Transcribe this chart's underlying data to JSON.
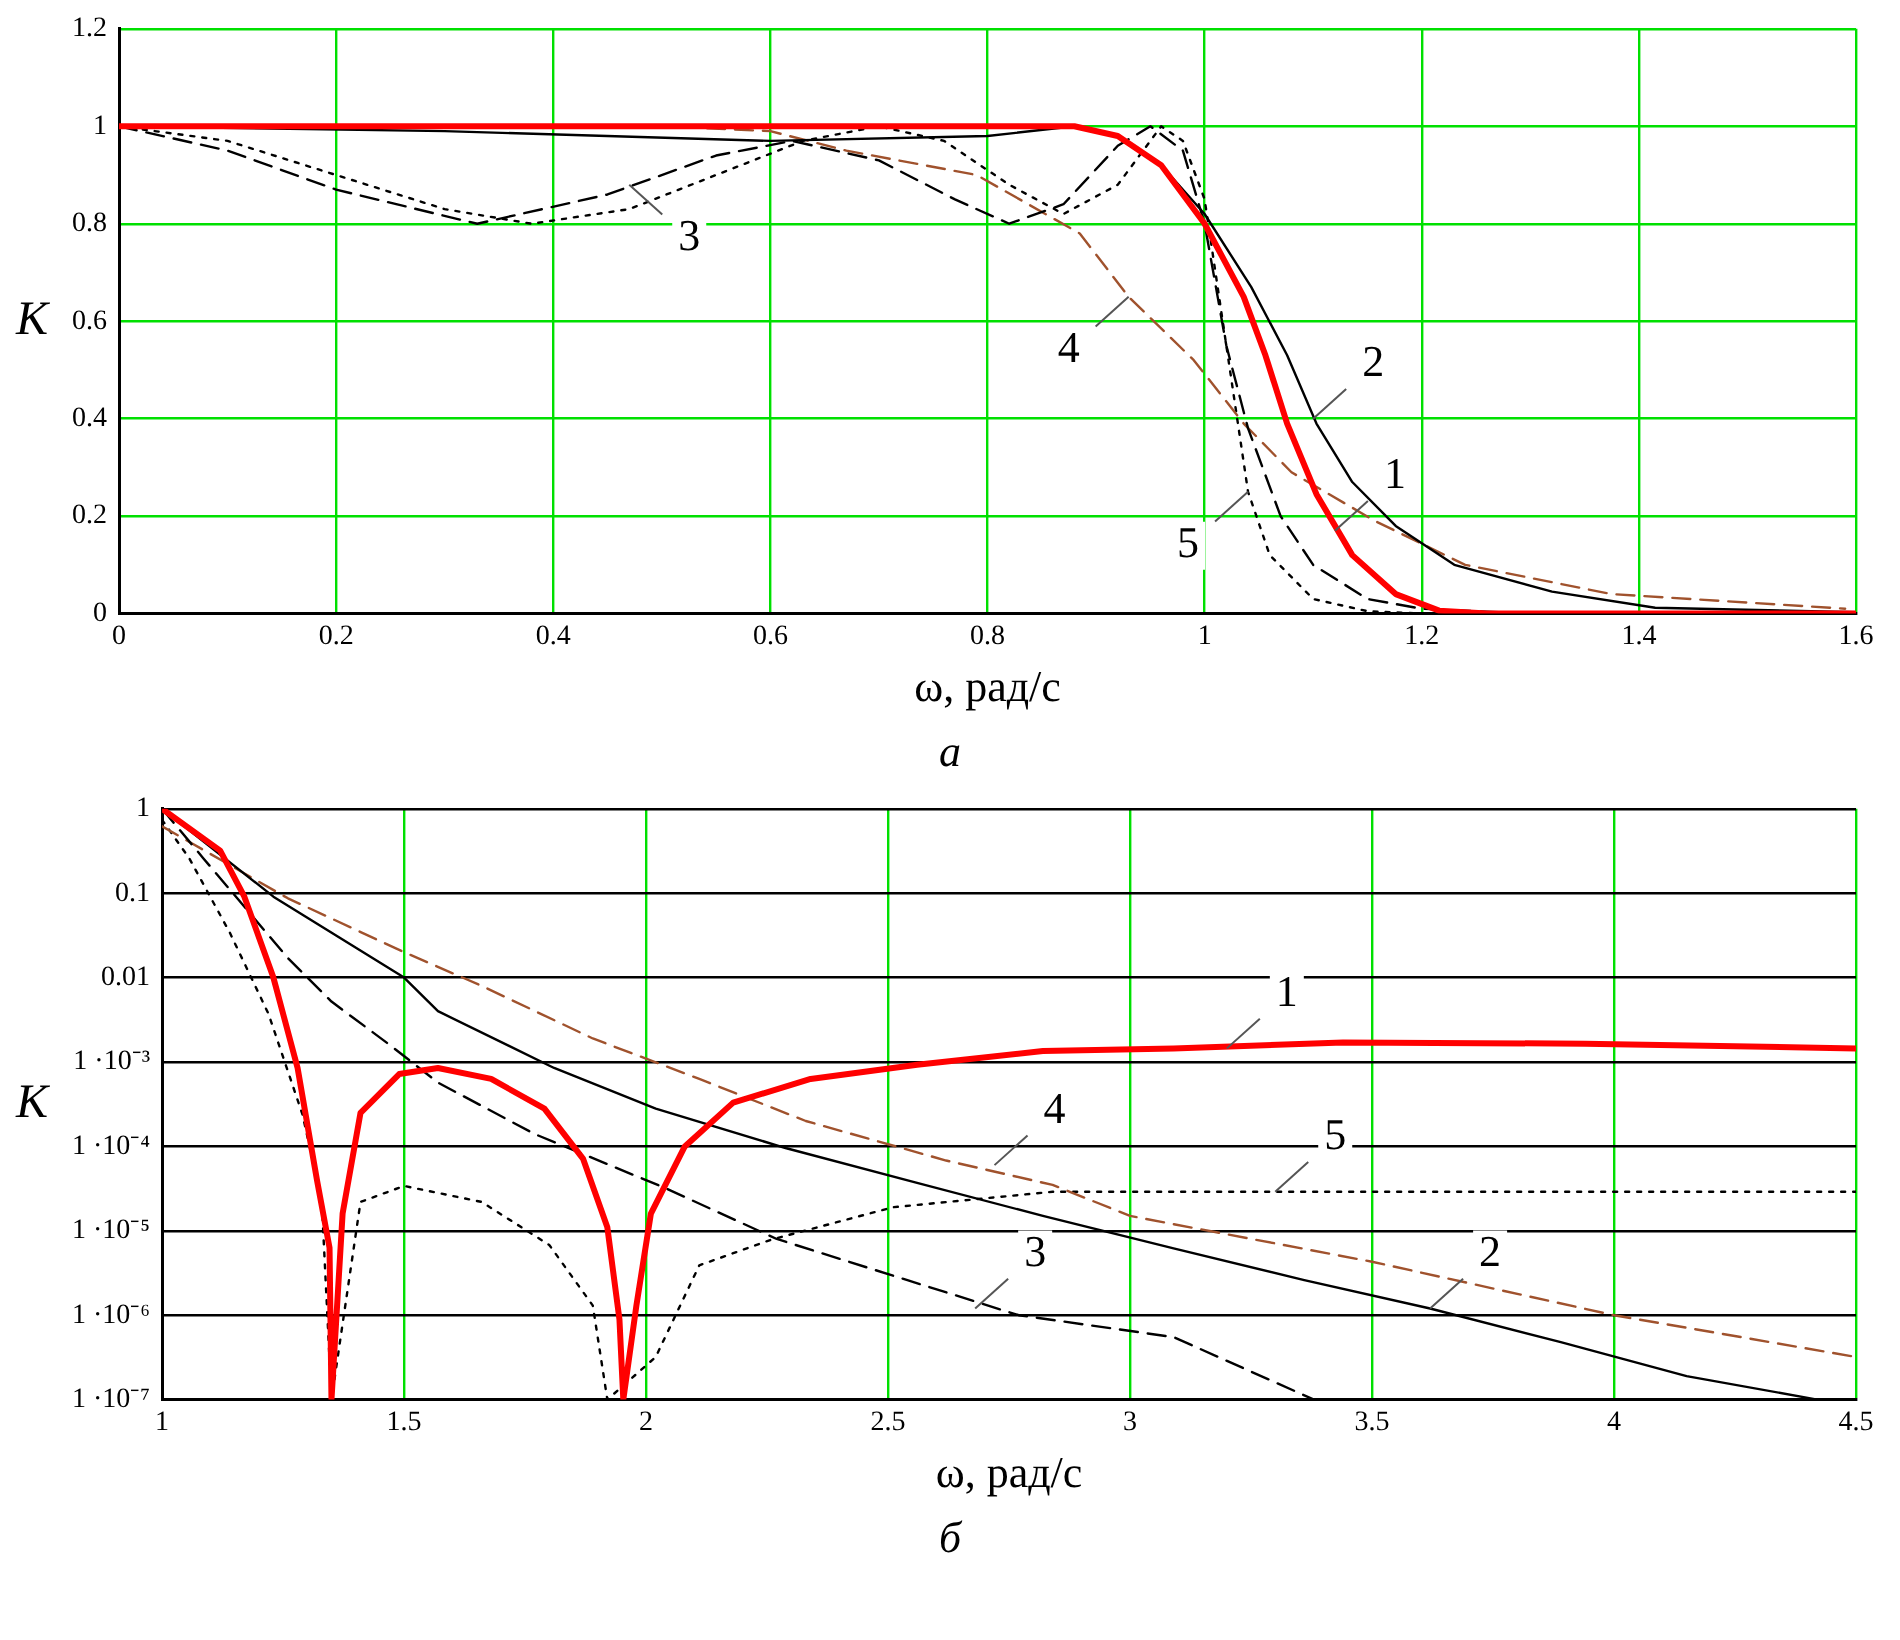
{
  "chart_data": [
    {
      "type": "line",
      "xlabel": "ω, рад/с",
      "ylabel": "K",
      "xlim": [
        0,
        1.6
      ],
      "xticks": [
        0,
        0.2,
        0.4,
        0.6,
        0.8,
        1,
        1.2,
        1.4,
        1.6
      ],
      "ylim": [
        0,
        1.2
      ],
      "yticks": [
        0,
        0.2,
        0.4,
        0.6,
        0.8,
        1,
        1.2
      ],
      "grid": true,
      "legend": false,
      "marker": "none",
      "series": [
        {
          "color": "#ff0000",
          "line_style": "solid",
          "x": [
            0,
            0.5,
            0.88,
            0.92,
            0.96,
            1.0,
            1.036,
            1.056,
            1.076,
            1.103,
            1.136,
            1.176,
            1.216,
            1.26,
            1.4,
            1.6
          ],
          "values": [
            1,
            1,
            1,
            0.98,
            0.92,
            0.8,
            0.65,
            0.53,
            0.39,
            0.245,
            0.12,
            0.04,
            0.006,
            0,
            0,
            0
          ]
        },
        {
          "color": "#000000",
          "line_style": "solid",
          "x": [
            0,
            0.3,
            0.6,
            0.8,
            0.88,
            0.92,
            0.96,
            1.0,
            1.043,
            1.076,
            1.103,
            1.136,
            1.176,
            1.23,
            1.32,
            1.415,
            1.6
          ],
          "values": [
            1,
            0.99,
            0.97,
            0.98,
            1,
            0.98,
            0.92,
            0.82,
            0.67,
            0.53,
            0.39,
            0.27,
            0.18,
            0.1,
            0.045,
            0.012,
            0.003
          ]
        },
        {
          "color": "#000000",
          "line_style": "dashed",
          "x": [
            0,
            0.1,
            0.2,
            0.33,
            0.45,
            0.55,
            0.62,
            0.7,
            0.77,
            0.82,
            0.87,
            0.92,
            0.95,
            0.98,
            1.0,
            1.02,
            1.04,
            1.07,
            1.1,
            1.15,
            1.2,
            1.3,
            1.6
          ],
          "values": [
            1,
            0.95,
            0.87,
            0.8,
            0.86,
            0.94,
            0.97,
            0.93,
            0.85,
            0.8,
            0.84,
            0.96,
            1,
            0.95,
            0.8,
            0.55,
            0.38,
            0.2,
            0.1,
            0.03,
            0.01,
            0,
            0
          ]
        },
        {
          "color": "#a0522d",
          "line_style": "dashed",
          "x": [
            0,
            0.5,
            0.6,
            0.67,
            0.79,
            0.885,
            0.93,
            0.99,
            1.036,
            1.08,
            1.157,
            1.24,
            1.375,
            1.59
          ],
          "values": [
            1,
            1,
            0.99,
            0.95,
            0.9,
            0.78,
            0.65,
            0.52,
            0.39,
            0.29,
            0.19,
            0.1,
            0.04,
            0.01
          ]
        },
        {
          "color": "#000000",
          "line_style": "dotted",
          "x": [
            0,
            0.1,
            0.2,
            0.3,
            0.38,
            0.47,
            0.55,
            0.63,
            0.7,
            0.76,
            0.82,
            0.87,
            0.92,
            0.96,
            0.98,
            1.0,
            1.02,
            1.04,
            1.06,
            1.1,
            1.15,
            1.2,
            1.6
          ],
          "values": [
            1,
            0.97,
            0.9,
            0.83,
            0.8,
            0.83,
            0.9,
            0.97,
            1,
            0.97,
            0.88,
            0.82,
            0.88,
            1,
            0.97,
            0.85,
            0.55,
            0.25,
            0.12,
            0.03,
            0.005,
            0,
            0
          ]
        }
      ],
      "annotations": [
        {
          "text": "3",
          "x": 0.47,
          "y": 0.88
        },
        {
          "text": "4",
          "x": 0.93,
          "y": 0.65
        },
        {
          "text": "2",
          "x": 1.1,
          "y": 0.4
        },
        {
          "text": "1",
          "x": 1.12,
          "y": 0.17
        },
        {
          "text": "5",
          "x": 1.04,
          "y": 0.25
        },
        "а"
      ]
    },
    {
      "type": "line",
      "xlabel": "ω, рад/с",
      "ylabel": "K",
      "log": "y",
      "xlim": [
        1,
        4.5
      ],
      "xticks": [
        1,
        1.5,
        2,
        2.5,
        3,
        3.5,
        4,
        4.5
      ],
      "ylim": [
        1e-07,
        1
      ],
      "yticks": [
        1,
        0.1,
        0.01,
        {
          "value": 0.001,
          "label": "1 ·10⁻³"
        },
        {
          "value": 0.0001,
          "label": "1 ·10⁻⁴"
        },
        {
          "value": 1e-05,
          "label": "1 ·10⁻⁵"
        },
        {
          "value": 1e-06,
          "label": "1 ·10⁻⁶"
        },
        {
          "value": 1e-07,
          "label": "1 ·10⁻⁷"
        }
      ],
      "grid": true,
      "legend": false,
      "marker": "none",
      "series": [
        {
          "color": "#ff0000",
          "line_style": "solid",
          "x": [
            1,
            1.12,
            1.17,
            1.23,
            1.28,
            1.32,
            1.346,
            1.35,
            1.373,
            1.41,
            1.49,
            1.57,
            1.68,
            1.79,
            1.87,
            1.92,
            1.945,
            1.953,
            1.98,
            2.01,
            2.08,
            2.18,
            2.34,
            2.56,
            2.82,
            3.09,
            3.44,
            3.94,
            4.5
          ],
          "values": [
            1,
            0.32,
            0.091,
            0.01,
            0.00085,
            4e-05,
            6.3e-06,
            1e-07,
            1.6e-05,
            0.00025,
            0.00072,
            0.00085,
            0.00063,
            0.00028,
            7.1e-05,
            1.1e-05,
            8.9e-07,
            1e-07,
            1.3e-06,
            1.6e-05,
            0.0001,
            0.00033,
            0.00063,
            0.00093,
            0.00135,
            0.00145,
            0.0017,
            0.00165,
            0.00145
          ]
        },
        {
          "color": "#000000",
          "line_style": "solid",
          "x": [
            1,
            1.23,
            1.5,
            1.57,
            1.81,
            2.02,
            2.29,
            2.56,
            2.82,
            3.09,
            3.36,
            3.62,
            3.89,
            4.15,
            4.42
          ],
          "values": [
            1,
            0.091,
            0.01,
            0.004,
            0.00085,
            0.00028,
            9.5e-05,
            3.7e-05,
            1.5e-05,
            6.2e-06,
            2.6e-06,
            1.2e-06,
            4.8e-07,
            1.9e-07,
            1e-07
          ]
        },
        {
          "color": "#000000",
          "line_style": "dashed",
          "x": [
            1,
            1.085,
            1.26,
            1.35,
            1.47,
            1.57,
            1.77,
            2.04,
            2.27,
            2.54,
            2.77,
            3.09,
            3.38
          ],
          "values": [
            1,
            0.26,
            0.017,
            0.0052,
            0.0016,
            0.00057,
            0.00014,
            3.2e-05,
            8e-06,
            2.6e-06,
            1e-06,
            5.5e-07,
            1e-07
          ]
        },
        {
          "color": "#a0522d",
          "line_style": "dashed",
          "x": [
            1,
            1.26,
            1.5,
            1.66,
            1.89,
            2.11,
            2.33,
            2.62,
            2.84,
            3.0,
            3.5,
            4.0,
            4.5
          ],
          "values": [
            0.62,
            0.087,
            0.02,
            0.008,
            0.0019,
            0.00063,
            0.0002,
            6.8e-05,
            3.5e-05,
            1.5e-05,
            4.3e-06,
            1e-06,
            3.2e-07
          ]
        },
        {
          "color": "#000000",
          "line_style": "dotted",
          "x": [
            1,
            1.056,
            1.14,
            1.22,
            1.29,
            1.33,
            1.35,
            1.41,
            1.5,
            1.66,
            1.8,
            1.89,
            1.92,
            2.02,
            2.11,
            2.26,
            2.51,
            2.84,
            3.5,
            4.5
          ],
          "values": [
            0.74,
            0.26,
            0.034,
            0.0037,
            0.00024,
            2.2e-05,
            1e-07,
            2.2e-05,
            3.4e-05,
            2.2e-05,
            6.8e-06,
            1.3e-06,
            1e-07,
            3.2e-07,
            3.9e-06,
            7.9e-06,
            1.9e-05,
            2.9e-05,
            2.9e-05,
            2.9e-05
          ]
        }
      ],
      "annotations": [
        {
          "text": "1",
          "x": 3.2,
          "y": 0.00145
        },
        {
          "text": "4",
          "x": 2.72,
          "y": 6e-05
        },
        {
          "text": "5",
          "x": 3.3,
          "y": 2.9e-05
        },
        {
          "text": "3",
          "x": 2.68,
          "y": 1.2e-06
        },
        {
          "text": "2",
          "x": 3.62,
          "y": 1.2e-06
        },
        "б"
      ]
    }
  ]
}
